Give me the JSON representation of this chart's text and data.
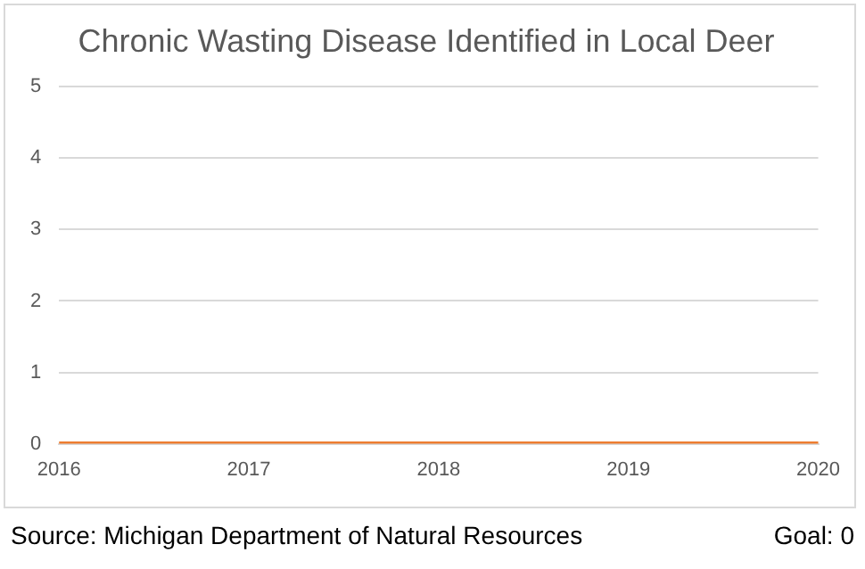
{
  "chart_data": {
    "type": "line",
    "title": "Chronic Wasting Disease Identified in Local Deer",
    "categories": [
      "2016",
      "2017",
      "2018",
      "2019",
      "2020"
    ],
    "series": [
      {
        "color": "#ed7d31",
        "values": [
          0,
          0,
          0,
          0,
          0
        ]
      }
    ],
    "ylim": [
      0,
      5
    ],
    "yticks": [
      0,
      1,
      2,
      3,
      4,
      5
    ],
    "grid": "y",
    "legend": false,
    "marker": "none",
    "line_style": "solid",
    "annotations": [
      "Source: Michigan Department of Natural Resources",
      "Goal: 0"
    ]
  }
}
